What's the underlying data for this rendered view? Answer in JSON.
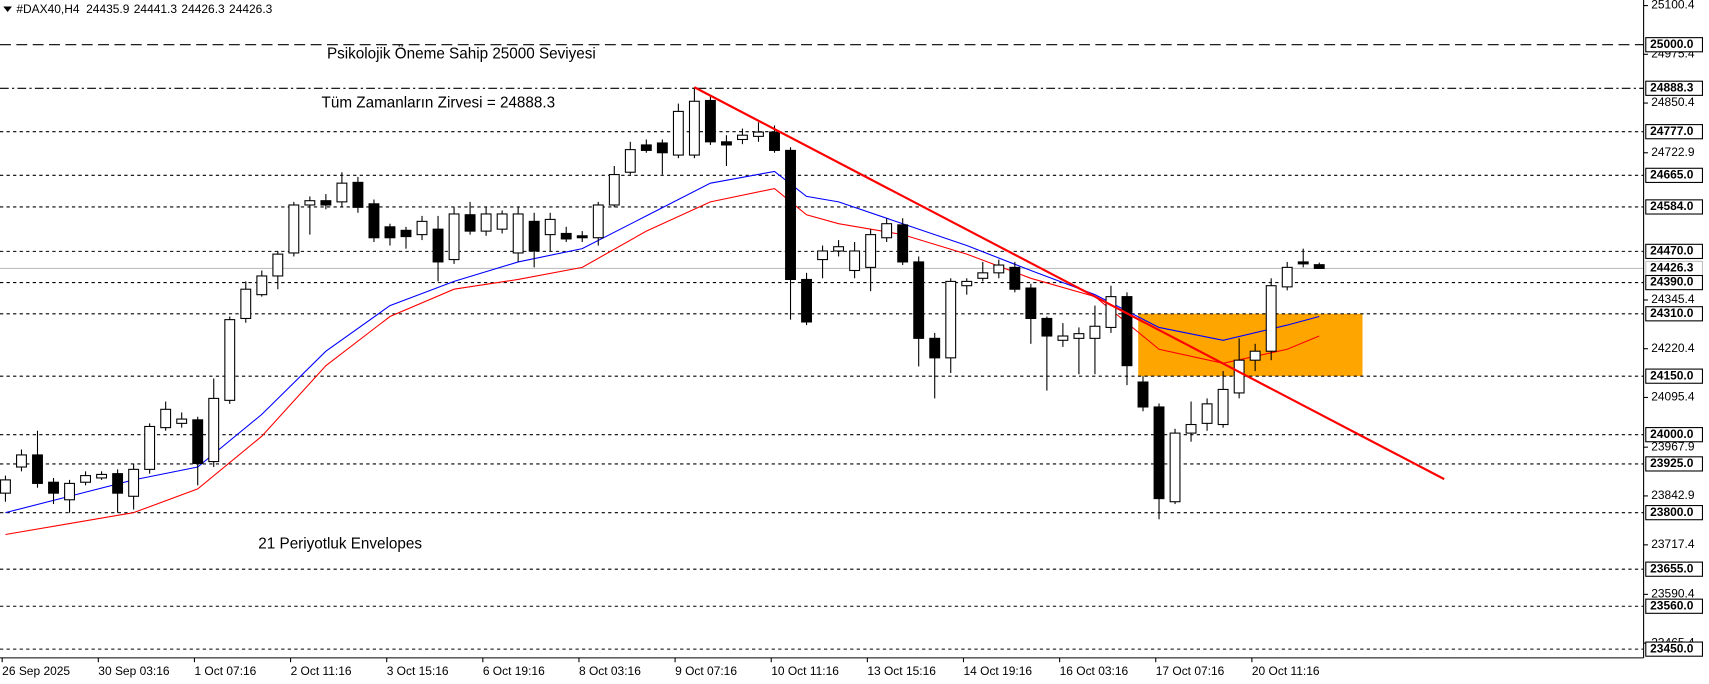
{
  "chart_data": {
    "type": "candlestick",
    "title": "#DAX40,H4",
    "up_color": "#ffffff",
    "down_color": "#000000",
    "categories": [
      "26 Sep 2025",
      null,
      null,
      null,
      null,
      null,
      "30 Sep 03:16",
      null,
      null,
      null,
      null,
      null,
      "1 Oct 07:16",
      null,
      null,
      null,
      null,
      null,
      "2 Oct 11:16",
      null,
      null,
      null,
      null,
      null,
      "3 Oct 15:16",
      null,
      null,
      null,
      null,
      null,
      "6 Oct 19:16",
      null,
      null,
      null,
      null,
      null,
      "8 Oct 03:16",
      null,
      null,
      null,
      null,
      null,
      "9 Oct 07:16",
      null,
      null,
      null,
      null,
      null,
      "10 Oct 11:16",
      null,
      null,
      null,
      null,
      null,
      "13 Oct 15:16",
      null,
      null,
      null,
      null,
      null,
      "14 Oct 19:16",
      null,
      null,
      null,
      null,
      null,
      "16 Oct 03:16",
      null,
      null,
      null,
      null,
      null,
      "17 Oct 07:16",
      null,
      null,
      null,
      null,
      null,
      "20 Oct 11:16",
      null,
      null,
      null,
      null
    ],
    "open": [
      23850,
      23917,
      23948,
      23878,
      23833,
      23878,
      23889,
      23900,
      23842,
      23911,
      24018,
      24029,
      24038,
      23931,
      24088,
      24298,
      24359,
      24407,
      24466,
      24589,
      24600,
      24597,
      24647,
      24592,
      24533,
      24524,
      24513,
      24527,
      24449,
      24564,
      24522,
      24527,
      24466,
      24547,
      24513,
      24516,
      24510,
      24505,
      24589,
      24673,
      24743,
      24748,
      24717,
      24717,
      24857,
      24751,
      24757,
      24765,
      24776,
      24729,
      24398,
      24449,
      24471,
      24421,
      24429,
      24505,
      24538,
      24443,
      24247,
      24197,
      24382,
      24401,
      24415,
      24429,
      24376,
      24298,
      24242,
      24247,
      24247,
      24275,
      24354,
      24135,
      24071,
      23828,
      24004,
      24029,
      24026,
      24107,
      24191,
      24214,
      24379,
      24443,
      24435.9
    ],
    "high": [
      23895,
      23962,
      24010,
      23889,
      23884,
      23906,
      23906,
      23911,
      23926,
      24029,
      24085,
      24057,
      24046,
      24144,
      24303,
      24393,
      24421,
      24471,
      24597,
      24611,
      24617,
      24673,
      24661,
      24603,
      24541,
      24533,
      24561,
      24561,
      24583,
      24597,
      24583,
      24575,
      24583,
      24569,
      24569,
      24533,
      24522,
      24597,
      24689,
      24751,
      24757,
      24757,
      24849,
      24891,
      24868,
      24768,
      24785,
      24801,
      24793,
      24737,
      24415,
      24485,
      24499,
      24494,
      24527,
      24555,
      24555,
      24457,
      24261,
      24401,
      24401,
      24443,
      24449,
      24443,
      24387,
      24303,
      24286,
      24275,
      24331,
      24382,
      24365,
      24150,
      24080,
      24015,
      24085,
      24093,
      24163,
      24247,
      24233,
      24401,
      24443,
      24477,
      24441.3
    ],
    "low": [
      23828,
      23906,
      23864,
      23822,
      23800,
      23870,
      23884,
      23800,
      23808,
      23900,
      24010,
      24018,
      23870,
      23917,
      24079,
      24287,
      24354,
      24373,
      24457,
      24513,
      24578,
      24583,
      24569,
      24494,
      24485,
      24477,
      24499,
      24393,
      24438,
      24513,
      24510,
      24516,
      24443,
      24429,
      24471,
      24494,
      24494,
      24485,
      24583,
      24667,
      24723,
      24667,
      24709,
      24709,
      24743,
      24689,
      24745,
      24751,
      24723,
      24295,
      24281,
      24401,
      24457,
      24401,
      24368,
      24494,
      24435,
      24175,
      24093,
      24158,
      24359,
      24393,
      24401,
      24365,
      24233,
      24113,
      24225,
      24155,
      24155,
      24261,
      24127,
      24060,
      23783,
      23822,
      23982,
      24010,
      24018,
      24093,
      24163,
      24191,
      24370,
      24429,
      24426.3
    ],
    "close": [
      23884,
      23948,
      23875,
      23850,
      23875,
      23895,
      23898,
      23850,
      23911,
      24021,
      24065,
      24040,
      23926,
      24093,
      24295,
      24373,
      24407,
      24463,
      24589,
      24600,
      24589,
      24645,
      24583,
      24505,
      24505,
      24508,
      24547,
      24443,
      24566,
      24522,
      24566,
      24566,
      24566,
      24471,
      24552,
      24502,
      24505,
      24589,
      24667,
      24731,
      24729,
      24723,
      24829,
      24855,
      24751,
      24743,
      24768,
      24776,
      24729,
      24398,
      24289,
      24471,
      24482,
      24471,
      24513,
      24541,
      24443,
      24247,
      24197,
      24393,
      24393,
      24415,
      24435,
      24373,
      24298,
      24253,
      24253,
      24259,
      24278,
      24354,
      24177,
      24071,
      23836,
      24004,
      24026,
      24079,
      24116,
      24191,
      24214,
      24382,
      24429,
      24438,
      24426.3
    ],
    "ylim": [
      23427.6,
      25114.7
    ],
    "yticks": [
      25100.4,
      24975.4,
      24850.4,
      24722.9,
      24345.4,
      24220.4,
      24095.4,
      23967.9,
      23842.9,
      23717.4,
      23590.4,
      23465.4
    ],
    "levels": [
      {
        "value": 25000,
        "label": "25000.0",
        "style": "longdash",
        "color": "#000000"
      },
      {
        "value": 24888.3,
        "label": "24888.3",
        "style": "dashdot",
        "color": "#000000"
      },
      {
        "value": 24777,
        "label": "24777.0",
        "style": "dashed",
        "color": "#000000"
      },
      {
        "value": 24665,
        "label": "24665.0",
        "style": "dashed",
        "color": "#000000"
      },
      {
        "value": 24584,
        "label": "24584.0",
        "style": "dashed",
        "color": "#000000"
      },
      {
        "value": 24470,
        "label": "24470.0",
        "style": "dashed",
        "color": "#000000"
      },
      {
        "value": 24426.3,
        "label": "24426.3",
        "style": "solid",
        "color": "#c0c0c0"
      },
      {
        "value": 24390,
        "label": "24390.0",
        "style": "dashed",
        "color": "#000000"
      },
      {
        "value": 24310,
        "label": "24310.0",
        "style": "dashed",
        "color": "#000000"
      },
      {
        "value": 24150,
        "label": "24150.0",
        "style": "dashed",
        "color": "#000000"
      },
      {
        "value": 24000,
        "label": "24000.0",
        "style": "dashed",
        "color": "#000000"
      },
      {
        "value": 23925,
        "label": "23925.0",
        "style": "dashed",
        "color": "#000000"
      },
      {
        "value": 23800,
        "label": "23800.0",
        "style": "dashed",
        "color": "#000000"
      },
      {
        "value": 23655,
        "label": "23655.0",
        "style": "dashed",
        "color": "#000000"
      },
      {
        "value": 23560,
        "label": "23560.0",
        "style": "dashed",
        "color": "#000000"
      },
      {
        "value": 23450,
        "label": "23450.0",
        "style": "dashed",
        "color": "#000000"
      }
    ],
    "envelopes": [
      {
        "color": "#0000ff",
        "x": [
          0,
          4,
          8,
          12,
          16,
          20,
          24,
          28,
          32,
          36,
          40,
          44,
          48,
          50,
          52,
          56,
          60,
          64,
          68,
          72,
          76,
          80,
          82
        ],
        "values": [
          23800,
          23842,
          23884,
          23917,
          24052,
          24214,
          24331,
          24393,
          24443,
          24477,
          24561,
          24645,
          24675,
          24611,
          24597,
          24541,
          24485,
          24421,
          24359,
          24275,
          24242,
          24281,
          24303
        ]
      },
      {
        "color": "#ff0000",
        "x": [
          0,
          4,
          8,
          12,
          16,
          20,
          24,
          28,
          32,
          36,
          40,
          44,
          48,
          50,
          52,
          56,
          60,
          64,
          68,
          72,
          76,
          80,
          82
        ],
        "values": [
          23744,
          23772,
          23800,
          23861,
          23996,
          24177,
          24303,
          24373,
          24398,
          24429,
          24522,
          24597,
          24631,
          24564,
          24541,
          24513,
          24463,
          24401,
          24354,
          24219,
          24183,
          24219,
          24253
        ]
      }
    ],
    "trendline": {
      "color": "#ff0000",
      "x": [
        43,
        89.8
      ],
      "values": [
        24891,
        23886
      ]
    },
    "zone": {
      "color": "#ffa500",
      "x": [
        70.7,
        84.7
      ],
      "values": [
        24310,
        24150
      ]
    },
    "annotations": [
      {
        "text": "Psikolojik Öneme Sahip 25000 Seviyesi",
        "color": "#d6278f"
      },
      {
        "text": "Tüm Zamanların Zirvesi = 24888.3",
        "color": "#d6278f"
      },
      {
        "text": "21 Periyotluk Envelopes",
        "color": "#3a3aa8"
      }
    ]
  }
}
